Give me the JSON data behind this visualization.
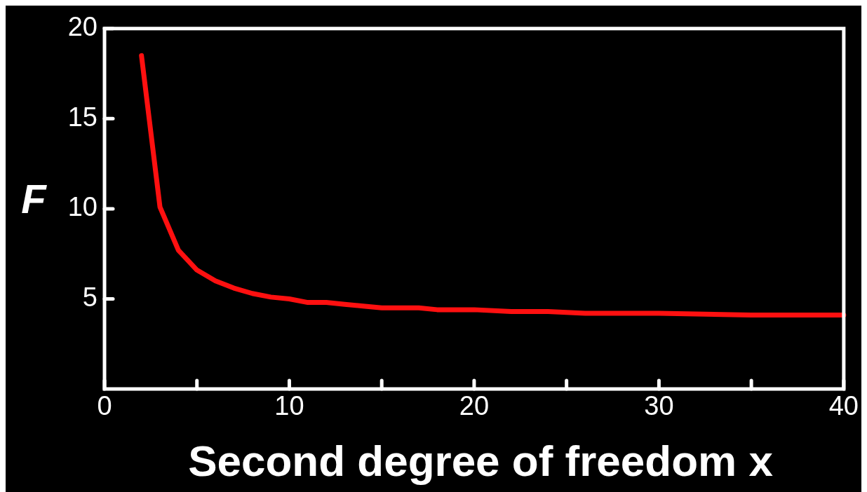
{
  "chart_data": {
    "type": "line",
    "xlabel": "Second degree of freedom x",
    "ylabel": "F",
    "x": [
      2,
      3,
      4,
      5,
      6,
      7,
      8,
      9,
      10,
      11,
      12,
      13,
      14,
      15,
      16,
      17,
      18,
      19,
      20,
      22,
      24,
      26,
      28,
      30,
      35,
      40
    ],
    "series": [
      {
        "color": "#ff1010",
        "values": [
          18.5,
          10.1,
          7.7,
          6.6,
          6.0,
          5.6,
          5.3,
          5.1,
          5.0,
          4.8,
          4.8,
          4.7,
          4.6,
          4.5,
          4.5,
          4.5,
          4.4,
          4.4,
          4.4,
          4.3,
          4.3,
          4.2,
          4.2,
          4.2,
          4.1,
          4.1
        ]
      }
    ],
    "xlim": [
      0,
      40
    ],
    "ylim": [
      0,
      20
    ],
    "xticks": [
      0,
      {
        "value": 5,
        "label": null
      },
      10,
      {
        "value": 15,
        "label": null
      },
      20,
      {
        "value": 25,
        "label": null
      },
      30,
      {
        "value": 35,
        "label": null
      },
      40
    ],
    "yticks": [
      5,
      10,
      15,
      20
    ],
    "grid": false,
    "legend": false,
    "marker": "none",
    "line_style": "solid"
  }
}
